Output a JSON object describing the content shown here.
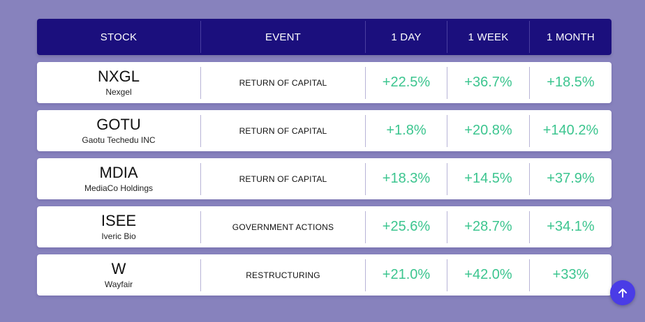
{
  "headers": {
    "stock": "STOCK",
    "event": "EVENT",
    "day": "1 DAY",
    "week": "1 WEEK",
    "month": "1 MONTH"
  },
  "rows": [
    {
      "ticker": "NXGL",
      "company": "Nexgel",
      "event": "RETURN OF CAPITAL",
      "day": "+22.5%",
      "week": "+36.7%",
      "month": "+18.5%"
    },
    {
      "ticker": "GOTU",
      "company": "Gaotu Techedu INC",
      "event": "RETURN OF CAPITAL",
      "day": "+1.8%",
      "week": "+20.8%",
      "month": "+140.2%"
    },
    {
      "ticker": "MDIA",
      "company": "MediaCo Holdings",
      "event": "RETURN OF CAPITAL",
      "day": "+18.3%",
      "week": "+14.5%",
      "month": "+37.9%"
    },
    {
      "ticker": "ISEE",
      "company": "Iveric Bio",
      "event": "GOVERNMENT ACTIONS",
      "day": "+25.6%",
      "week": "+28.7%",
      "month": "+34.1%"
    },
    {
      "ticker": "W",
      "company": "Wayfair",
      "event": "RESTRUCTURING",
      "day": "+21.0%",
      "week": "+42.0%",
      "month": "+33%"
    }
  ],
  "colors": {
    "background": "#8782bd",
    "header": "#1b0f7d",
    "positive": "#3cc58f",
    "button": "#4a3ce6"
  },
  "scroll_top_icon": "arrow-up-icon"
}
